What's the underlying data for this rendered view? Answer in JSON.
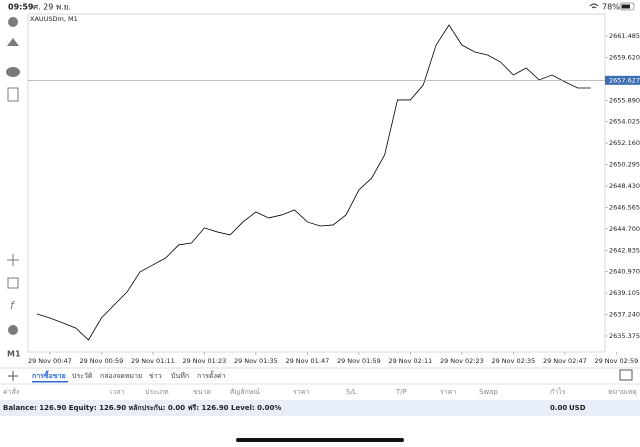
{
  "status_bar": {
    "time": "09:59",
    "date": "ศ. 29 พ.ย.",
    "battery": "78%"
  },
  "toolbar": {
    "timeframe": "M1"
  },
  "chart_data": {
    "type": "line",
    "title": "XAUUSDm, M1",
    "color": "#000000",
    "categories": [
      null,
      "29 Nov 00:47",
      null,
      null,
      null,
      "29 Nov 00:59",
      null,
      null,
      null,
      "29 Nov 01:11",
      null,
      null,
      null,
      "29 Nov 01:23",
      null,
      null,
      null,
      "29 Nov 01:35",
      null,
      null,
      null,
      "29 Nov 01:47",
      null,
      null,
      null,
      "29 Nov 01:59",
      null,
      null,
      null,
      "29 Nov 02:11",
      null,
      null,
      null,
      "29 Nov 02:23",
      null,
      null,
      null,
      "29 Nov 02:35",
      null,
      null,
      null,
      "29 Nov 02:47",
      null,
      null,
      null,
      "29 Nov 02:59"
    ],
    "values": [
      2637.29,
      2636.94,
      2636.51,
      2636.07,
      2635.03,
      2636.94,
      2638.08,
      2639.21,
      2640.95,
      2641.56,
      2642.17,
      2643.3,
      2643.47,
      2644.78,
      2644.43,
      2644.17,
      2645.3,
      2646.17,
      2645.65,
      2645.91,
      2646.34,
      2645.3,
      2644.95,
      2645.04,
      2645.91,
      2648.08,
      2649.13,
      2651.13,
      2655.92,
      2655.92,
      2657.22,
      2660.7,
      2662.44,
      2660.7,
      2660.09,
      2659.83,
      2659.22,
      2658.09,
      2658.7,
      2657.66,
      2658.09,
      2657.49,
      2656.96,
      2656.96,
      null,
      null
    ],
    "ylim": [
      2633.98,
      2663.4
    ],
    "yticks": [
      2661.485,
      {
        "value": 2659.62,
        "label": "2659.620"
      },
      {
        "value": 2655.89,
        "label": "2655.890"
      },
      2654.025,
      {
        "value": 2652.16,
        "label": "2652.160"
      },
      2650.295,
      {
        "value": 2648.43,
        "label": "2648.430"
      },
      2646.565,
      {
        "value": 2644.7,
        "label": "2644.700"
      },
      2642.835,
      {
        "value": 2640.97,
        "label": "2640.970"
      },
      2639.105,
      {
        "value": 2637.24,
        "label": "2637.240"
      },
      2635.375
    ],
    "last_price": 2657.627,
    "last_price_color": "#3b6db3"
  },
  "tabs": [
    "การซื้อขาย",
    "ประวัติ",
    "กล่องจดหมาย",
    "ข่าว",
    "บันทึก",
    "การตั้งค่า"
  ],
  "columns": [
    "ค่าสั่ง",
    "เวลา",
    "ประเภท",
    "ขนาด",
    "สัญลักษณ์",
    "ราคา",
    "S/L",
    "T/P",
    "ราคา",
    "Swap",
    "กำไร",
    "หมายเหตุ"
  ],
  "account": {
    "summary": "Balance: 126.90 Equity: 126.90 หลักประกัน: 0.00 ฟรี: 126.90 Level: 0.00%",
    "profit": "0.00",
    "currency": "USD"
  }
}
